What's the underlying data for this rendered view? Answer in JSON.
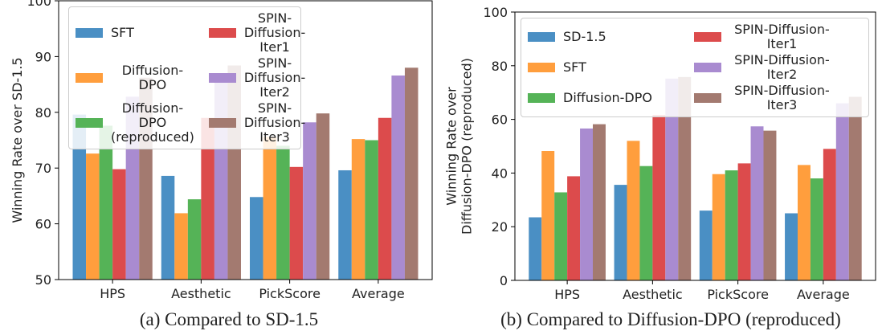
{
  "chart_data": [
    {
      "type": "bar",
      "caption": "(a) Compared to SD-1.5",
      "ylabel": [
        "Winning Rate over SD-1.5"
      ],
      "categories": [
        "HPS",
        "Aesthetic",
        "PickScore",
        "Average"
      ],
      "ylim": [
        50,
        100
      ],
      "yticks": [
        50,
        60,
        70,
        80,
        90,
        100
      ],
      "series": [
        {
          "name": "SFT",
          "color": "#4a8fc4",
          "values": [
            79.6,
            68.6,
            64.8,
            69.6
          ]
        },
        {
          "name": "Diffusion-DPO",
          "color": "#ff9e3d",
          "values": [
            72.6,
            61.9,
            75.6,
            75.2
          ]
        },
        {
          "name": "Diffusion-DPO (reproduced)",
          "color": "#55b357",
          "values": [
            77.6,
            64.4,
            74.0,
            75.0
          ]
        },
        {
          "name": "SPIN-Diffusion-Iter1",
          "color": "#dc4b4c",
          "values": [
            69.8,
            79.0,
            70.2,
            79.0
          ]
        },
        {
          "name": "SPIN-Diffusion-Iter2",
          "color": "#a98bd0",
          "values": [
            82.8,
            87.0,
            78.2,
            86.6
          ]
        },
        {
          "name": "SPIN-Diffusion-Iter3",
          "color": "#a37a70",
          "values": [
            86.2,
            88.4,
            79.8,
            88.0
          ]
        }
      ]
    },
    {
      "type": "bar",
      "caption": "(b) Compared to Diffusion-DPO (reproduced)",
      "ylabel": [
        "Winning Rate over",
        "Diffusion-DPO (reproduced)"
      ],
      "categories": [
        "HPS",
        "Aesthetic",
        "PickScore",
        "Average"
      ],
      "ylim": [
        0,
        100
      ],
      "yticks": [
        0,
        20,
        40,
        60,
        80,
        100
      ],
      "series": [
        {
          "name": "SD-1.5",
          "color": "#4a8fc4",
          "values": [
            23.5,
            35.6,
            26.0,
            25.0
          ]
        },
        {
          "name": "SFT",
          "color": "#ff9e3d",
          "values": [
            48.2,
            52.0,
            39.6,
            43.0
          ]
        },
        {
          "name": "Diffusion-DPO",
          "color": "#55b357",
          "values": [
            32.8,
            42.6,
            41.0,
            38.0
          ]
        },
        {
          "name": "SPIN-Diffusion-Iter1",
          "color": "#dc4b4c",
          "values": [
            38.8,
            61.6,
            43.6,
            49.0
          ]
        },
        {
          "name": "SPIN-Diffusion-Iter2",
          "color": "#a98bd0",
          "values": [
            56.6,
            75.2,
            57.4,
            66.0
          ]
        },
        {
          "name": "SPIN-Diffusion-Iter3",
          "color": "#a37a70",
          "values": [
            58.2,
            75.8,
            55.8,
            68.4
          ]
        }
      ]
    }
  ]
}
